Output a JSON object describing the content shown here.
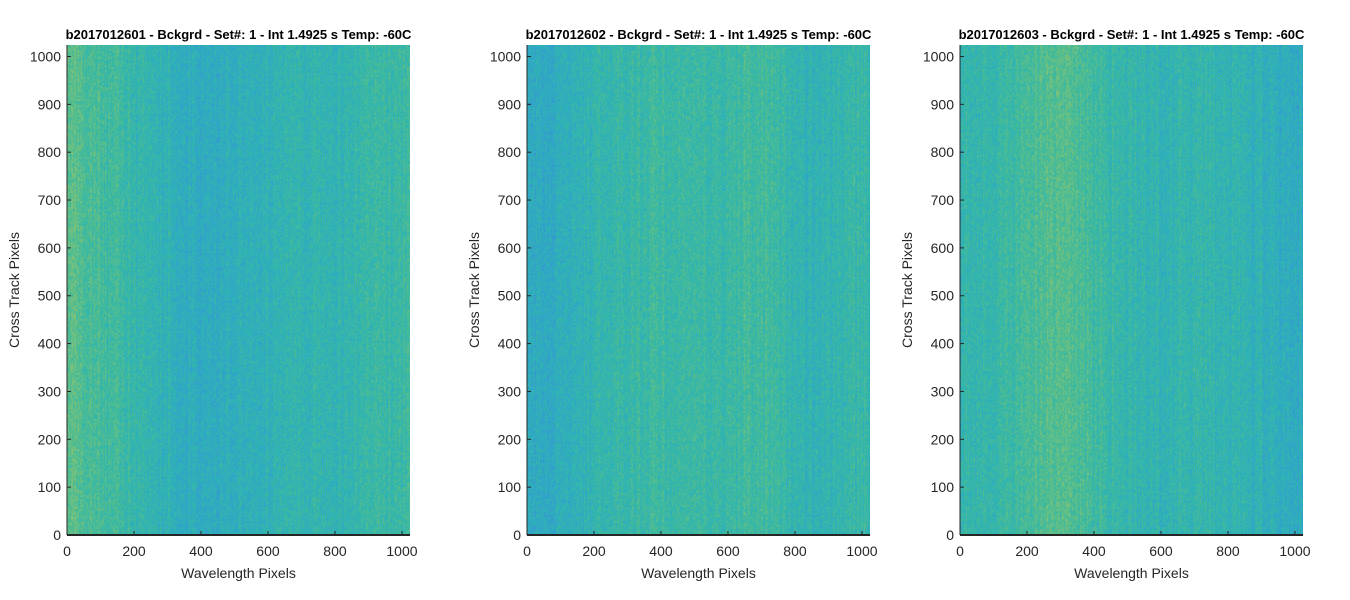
{
  "colormap": [
    "#3c8fd6",
    "#2fa6c8",
    "#2fb5b2",
    "#48bc94",
    "#7cc27a",
    "#a8c45f"
  ],
  "chart_data": [
    {
      "type": "heatmap",
      "title": "b2017012601 - Bckgrd - Set#: 1 - Int 1.4925 s Temp: -60C",
      "xlabel": "Wavelength Pixels",
      "ylabel": "Cross Track Pixels",
      "xlim": [
        0,
        1024
      ],
      "ylim": [
        0,
        1024
      ],
      "xticks": [
        0,
        200,
        400,
        600,
        800,
        1000
      ],
      "yticks": [
        0,
        100,
        200,
        300,
        400,
        500,
        600,
        700,
        800,
        900,
        1000
      ],
      "column_profile": {
        "x": [
          0,
          50,
          100,
          150,
          200,
          250,
          300,
          350,
          400,
          450,
          500,
          550,
          600,
          650,
          700,
          750,
          800,
          850,
          900,
          950,
          1000,
          1024
        ],
        "level": [
          0.7,
          0.62,
          0.55,
          0.5,
          0.45,
          0.42,
          0.38,
          0.32,
          0.28,
          0.3,
          0.34,
          0.36,
          0.38,
          0.4,
          0.42,
          0.4,
          0.38,
          0.42,
          0.45,
          0.48,
          0.5,
          0.5
        ]
      }
    },
    {
      "type": "heatmap",
      "title": "b2017012602 - Bckgrd - Set#: 1 - Int 1.4925 s Temp: -60C",
      "xlabel": "Wavelength Pixels",
      "ylabel": "Cross Track Pixels",
      "xlim": [
        0,
        1024
      ],
      "ylim": [
        0,
        1024
      ],
      "xticks": [
        0,
        200,
        400,
        600,
        800,
        1000
      ],
      "yticks": [
        0,
        100,
        200,
        300,
        400,
        500,
        600,
        700,
        800,
        900,
        1000
      ],
      "column_profile": {
        "x": [
          0,
          50,
          100,
          150,
          200,
          250,
          300,
          350,
          400,
          450,
          500,
          550,
          600,
          650,
          700,
          750,
          800,
          850,
          900,
          950,
          1000,
          1024
        ],
        "level": [
          0.3,
          0.28,
          0.32,
          0.36,
          0.4,
          0.44,
          0.46,
          0.48,
          0.5,
          0.52,
          0.5,
          0.48,
          0.5,
          0.54,
          0.56,
          0.5,
          0.4,
          0.38,
          0.4,
          0.44,
          0.46,
          0.46
        ]
      }
    },
    {
      "type": "heatmap",
      "title": "b2017012603 - Bckgrd - Set#: 1 - Int 1.4925 s Temp: -60C",
      "xlabel": "Wavelength Pixels",
      "ylabel": "Cross Track Pixels",
      "xlim": [
        0,
        1024
      ],
      "ylim": [
        0,
        1024
      ],
      "xticks": [
        0,
        200,
        400,
        600,
        800,
        1000
      ],
      "yticks": [
        0,
        100,
        200,
        300,
        400,
        500,
        600,
        700,
        800,
        900,
        1000
      ],
      "column_profile": {
        "x": [
          0,
          50,
          100,
          150,
          200,
          250,
          300,
          350,
          400,
          450,
          500,
          550,
          600,
          650,
          700,
          750,
          800,
          850,
          900,
          950,
          1000,
          1024
        ],
        "level": [
          0.4,
          0.44,
          0.46,
          0.5,
          0.56,
          0.62,
          0.66,
          0.62,
          0.54,
          0.46,
          0.42,
          0.4,
          0.4,
          0.42,
          0.44,
          0.42,
          0.4,
          0.38,
          0.34,
          0.3,
          0.28,
          0.28
        ]
      }
    }
  ]
}
